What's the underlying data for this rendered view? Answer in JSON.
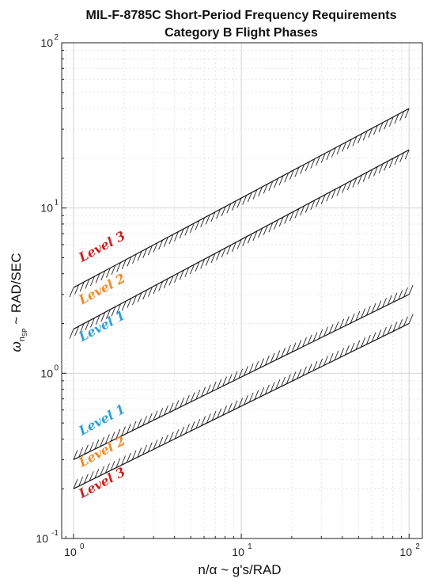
{
  "chart_data": {
    "type": "line",
    "title": "MIL-F-8785C Short-Period Frequency Requirements",
    "subtitle": "Category B Flight Phases",
    "xlabel": "n/α ~ g's/RAD",
    "ylabel_main": "ω",
    "ylabel_sub": "n",
    "ylabel_subsub": "SP",
    "ylabel_rest": " ~ RAD/SEC",
    "xscale": "log",
    "yscale": "log",
    "xlim": [
      0.85,
      120
    ],
    "ylim": [
      0.1,
      100
    ],
    "x_ticks": [
      {
        "value": 1,
        "base": "10",
        "exp": "0"
      },
      {
        "value": 10,
        "base": "10",
        "exp": "1"
      },
      {
        "value": 100,
        "base": "10",
        "exp": "2"
      }
    ],
    "y_ticks": [
      {
        "value": 0.1,
        "base": "10",
        "exp": "-1"
      },
      {
        "value": 1,
        "base": "10",
        "exp": "0"
      },
      {
        "value": 10,
        "base": "10",
        "exp": "1"
      },
      {
        "value": 100,
        "base": "10",
        "exp": "2"
      }
    ],
    "grid": true,
    "boundaries": [
      {
        "id": "level2-upper",
        "x": [
          1,
          100
        ],
        "y": [
          3.3,
          40
        ],
        "hatch": "below"
      },
      {
        "id": "level1-upper",
        "x": [
          1,
          100
        ],
        "y": [
          1.85,
          22.5
        ],
        "hatch": "below"
      },
      {
        "id": "level1-lower",
        "x": [
          1,
          100
        ],
        "y": [
          0.3,
          3
        ],
        "hatch": "above"
      },
      {
        "id": "level2-lower",
        "x": [
          1,
          100
        ],
        "y": [
          0.2,
          2
        ],
        "hatch": "above"
      }
    ],
    "level_labels": [
      {
        "text": "Level 3",
        "x": 1.12,
        "y": 4.7,
        "color": "#cc1f1f"
      },
      {
        "text": "Level 2",
        "x": 1.12,
        "y": 2.6,
        "color": "#f08a24"
      },
      {
        "text": "Level 1",
        "x": 1.12,
        "y": 1.55,
        "color": "#2a9fd6"
      },
      {
        "text": "Level 1",
        "x": 1.12,
        "y": 0.42,
        "color": "#2a9fd6"
      },
      {
        "text": "Level 2",
        "x": 1.12,
        "y": 0.27,
        "color": "#f08a24"
      },
      {
        "text": "Level 3",
        "x": 1.12,
        "y": 0.175,
        "color": "#cc1f1f"
      }
    ]
  }
}
